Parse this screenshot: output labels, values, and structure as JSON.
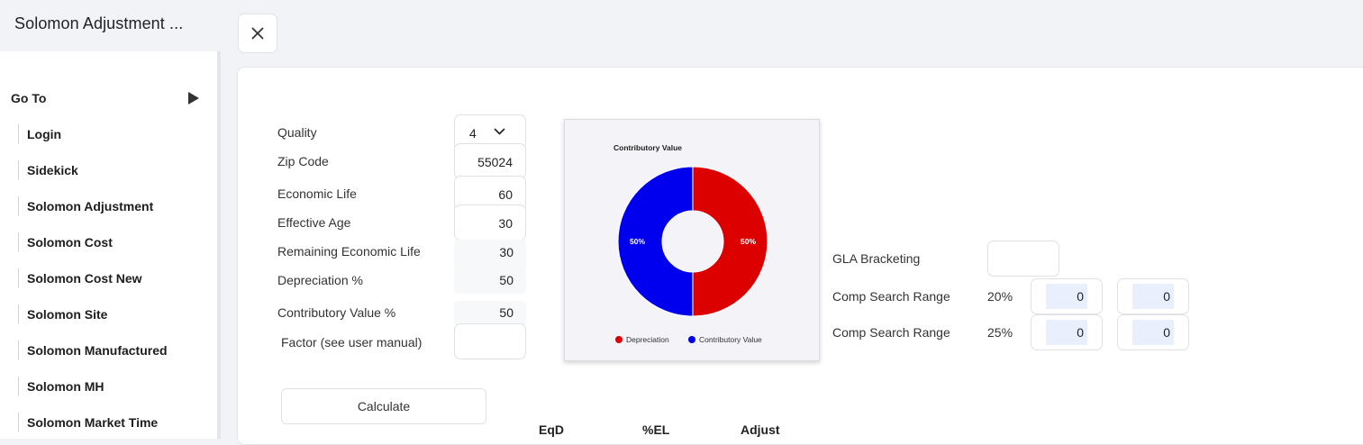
{
  "app": {
    "title": "Solomon Adjustment ..."
  },
  "sidebar": {
    "goto_label": "Go To",
    "items": [
      {
        "label": "Login"
      },
      {
        "label": "Sidekick"
      },
      {
        "label": "Solomon Adjustment"
      },
      {
        "label": "Solomon Cost"
      },
      {
        "label": "Solomon Cost New"
      },
      {
        "label": "Solomon Site"
      },
      {
        "label": "Solomon Manufactured"
      },
      {
        "label": "Solomon MH"
      },
      {
        "label": "Solomon Market Time"
      }
    ]
  },
  "form": {
    "quality_label": "Quality",
    "quality_value": "4",
    "zip_label": "Zip Code",
    "zip_value": "55024",
    "economic_life_label": "Economic Life",
    "economic_life_value": "60",
    "effective_age_label": "Effective Age",
    "effective_age_value": "30",
    "remaining_life_label": "Remaining Economic Life",
    "remaining_life_value": "30",
    "depreciation_label": "Depreciation %",
    "depreciation_value": "50",
    "contributory_label": "Contributory Value %",
    "contributory_value": "50",
    "factor_label": "Factor (see user manual)",
    "factor_value": "",
    "calculate_label": "Calculate"
  },
  "chart_data": {
    "type": "pie",
    "title": "Contributory Value",
    "categories": [
      "Depreciation",
      "Contributory Value"
    ],
    "values": [
      50,
      50
    ],
    "labels": [
      "50%",
      "50%"
    ],
    "colors": [
      "#dd0000",
      "#0000ee"
    ],
    "legend_position": "bottom"
  },
  "gla": {
    "bracketing_label": "GLA Bracketing",
    "bracketing_value": "",
    "rows": [
      {
        "label": "Comp Search Range",
        "pct": "20%",
        "low": "0",
        "high": "0"
      },
      {
        "label": "Comp Search Range",
        "pct": "25%",
        "low": "0",
        "high": "0"
      }
    ]
  },
  "table": {
    "headers": [
      "EqD",
      "%EL",
      "Adjust"
    ]
  }
}
